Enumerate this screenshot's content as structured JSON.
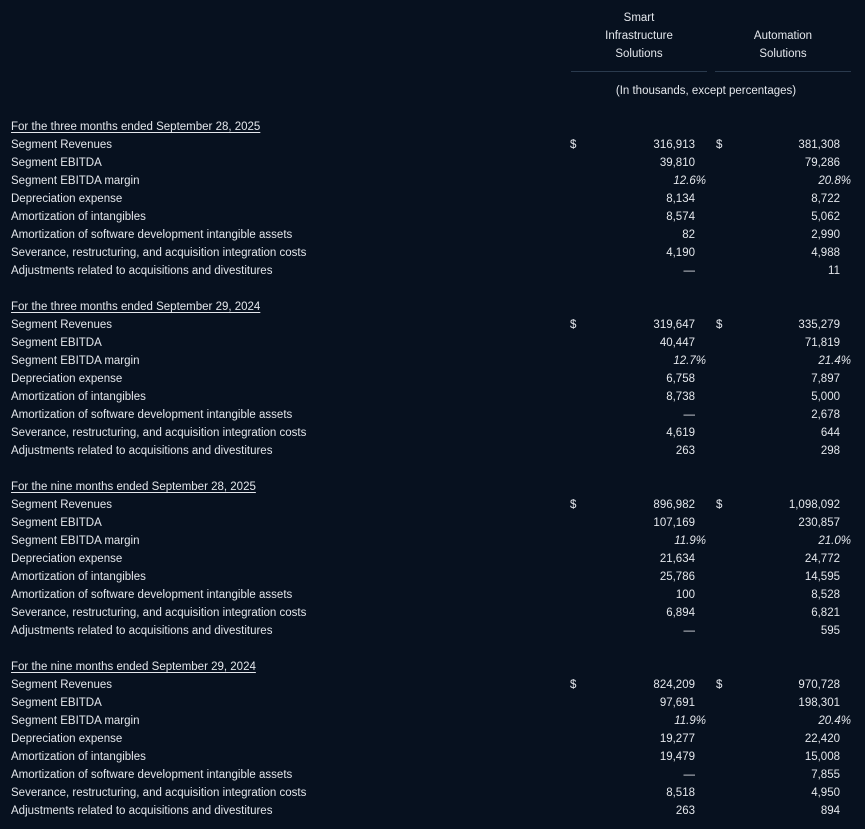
{
  "columns": [
    {
      "lines": [
        "Smart",
        "Infrastructure",
        "Solutions"
      ]
    },
    {
      "lines": [
        "Automation",
        "Solutions"
      ]
    }
  ],
  "units_note": "(In thousands, except percentages)",
  "currency_symbol": "$",
  "row_labels": [
    "Segment Revenues",
    "Segment EBITDA",
    "Segment EBITDA margin",
    "Depreciation expense",
    "Amortization of intangibles",
    "Amortization of software development intangible assets",
    "Severance, restructuring, and acquisition integration costs",
    "Adjustments related to acquisitions and divestitures"
  ],
  "sections": [
    {
      "heading": "For the three months ended September 28, 2025",
      "sis": [
        "316,913",
        "39,810",
        "12.6%",
        "8,134",
        "8,574",
        "82",
        "4,190",
        "—"
      ],
      "as": [
        "381,308",
        "79,286",
        "20.8%",
        "8,722",
        "5,062",
        "2,990",
        "4,988",
        "11"
      ]
    },
    {
      "heading": "For the three months ended September 29, 2024",
      "sis": [
        "319,647",
        "40,447",
        "12.7%",
        "6,758",
        "8,738",
        "—",
        "4,619",
        "263"
      ],
      "as": [
        "335,279",
        "71,819",
        "21.4%",
        "7,897",
        "5,000",
        "2,678",
        "644",
        "298"
      ]
    },
    {
      "heading": "For the nine months ended September 28, 2025",
      "sis": [
        "896,982",
        "107,169",
        "11.9%",
        "21,634",
        "25,786",
        "100",
        "6,894",
        "—"
      ],
      "as": [
        "1,098,092",
        "230,857",
        "21.0%",
        "24,772",
        "14,595",
        "8,528",
        "6,821",
        "595"
      ]
    },
    {
      "heading": "For the nine months ended September 29, 2024",
      "sis": [
        "824,209",
        "97,691",
        "11.9%",
        "19,277",
        "19,479",
        "—",
        "8,518",
        "263"
      ],
      "as": [
        "970,728",
        "198,301",
        "20.4%",
        "22,420",
        "15,008",
        "7,855",
        "4,950",
        "894"
      ]
    }
  ]
}
